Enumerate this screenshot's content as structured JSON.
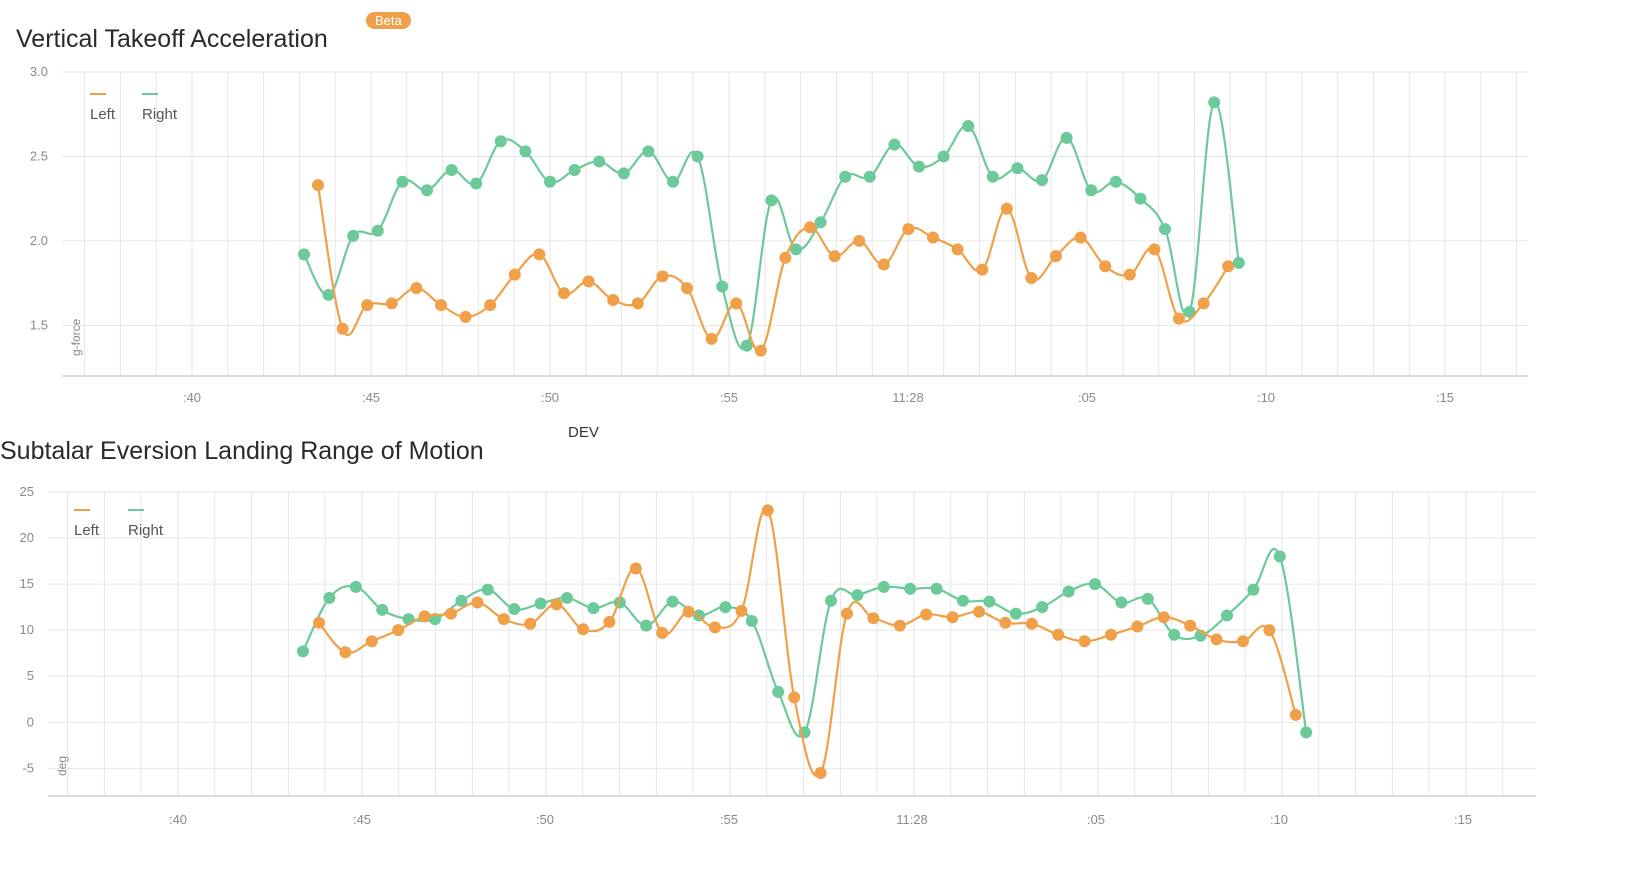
{
  "badge": "Beta",
  "dev_label": "DEV",
  "colors": {
    "left": "#f0a048",
    "right": "#6cc99a"
  },
  "chart_data": [
    {
      "type": "line",
      "title": "Vertical Takeoff Acceleration",
      "ylabel": "g-force",
      "xlabel": "",
      "ylim": [
        1.2,
        3.0
      ],
      "yticks": [
        "1.5",
        "2.0",
        "2.5",
        "3.0"
      ],
      "xticks": [
        ":40",
        ":45",
        ":50",
        ":55",
        "11:28",
        ":05",
        ":10",
        ":15"
      ],
      "legend": {
        "position": "top-left",
        "entries": [
          "Left",
          "Right"
        ]
      },
      "x": [
        0,
        1,
        2,
        3,
        4,
        5,
        6,
        7,
        8,
        9,
        10,
        11,
        12,
        13,
        14,
        15,
        16,
        17,
        18,
        19,
        20,
        21,
        22,
        23,
        24,
        25,
        26,
        27,
        28,
        29,
        30,
        31,
        32,
        33,
        34,
        35,
        36,
        37,
        38,
        39
      ],
      "series": [
        {
          "name": "Left",
          "values": [
            2.33,
            1.48,
            1.62,
            1.63,
            1.72,
            1.62,
            1.55,
            1.62,
            1.8,
            1.92,
            1.69,
            1.76,
            1.65,
            1.63,
            1.79,
            1.72,
            1.42,
            1.63,
            1.35,
            1.9,
            2.08,
            1.91,
            2.0,
            1.86,
            2.07,
            2.02,
            1.95,
            1.83,
            2.19,
            1.78,
            1.91,
            2.02,
            1.85,
            1.8,
            1.95,
            1.54,
            1.63,
            1.85,
            null,
            null
          ]
        },
        {
          "name": "Right",
          "values": [
            1.92,
            1.68,
            2.03,
            2.06,
            2.35,
            2.3,
            2.42,
            2.34,
            2.59,
            2.53,
            2.35,
            2.42,
            2.47,
            2.4,
            2.53,
            2.35,
            2.5,
            1.73,
            1.38,
            2.24,
            1.95,
            2.11,
            2.38,
            2.38,
            2.57,
            2.44,
            2.5,
            2.68,
            2.38,
            2.43,
            2.36,
            2.61,
            2.3,
            2.35,
            2.25,
            2.07,
            1.58,
            2.82,
            1.87,
            null
          ]
        }
      ]
    },
    {
      "type": "line",
      "title": "Subtalar Eversion Landing Range of Motion",
      "ylabel": "deg",
      "xlabel": "",
      "ylim": [
        -8,
        25
      ],
      "yticks": [
        "-5",
        "0",
        "5",
        "10",
        "15",
        "20",
        "25"
      ],
      "xticks": [
        ":40",
        ":45",
        ":50",
        ":55",
        "11:28",
        ":05",
        ":10",
        ":15"
      ],
      "legend": {
        "position": "top-left",
        "entries": [
          "Left",
          "Right"
        ]
      },
      "x": [
        0,
        1,
        2,
        3,
        4,
        5,
        6,
        7,
        8,
        9,
        10,
        11,
        12,
        13,
        14,
        15,
        16,
        17,
        18,
        19,
        20,
        21,
        22,
        23,
        24,
        25,
        26,
        27,
        28,
        29,
        30,
        31,
        32,
        33,
        34,
        35,
        36,
        37,
        38,
        39
      ],
      "series": [
        {
          "name": "Left",
          "values": [
            10.8,
            7.6,
            8.8,
            10,
            11.5,
            11.8,
            13,
            11.2,
            10.7,
            12.8,
            10.1,
            10.9,
            16.7,
            9.7,
            12.0,
            10.3,
            12.1,
            23,
            2.7,
            -5.5,
            11.8,
            11.3,
            10.5,
            11.7,
            11.4,
            12.0,
            10.8,
            10.7,
            9.5,
            8.8,
            9.5,
            10.4,
            11.4,
            10.5,
            9.0,
            8.8,
            10.0,
            0.8,
            null,
            null
          ]
        },
        {
          "name": "Right",
          "values": [
            7.7,
            13.5,
            14.7,
            12.2,
            11.2,
            11.2,
            13.2,
            14.4,
            12.3,
            12.9,
            13.5,
            12.4,
            13.0,
            10.5,
            13.1,
            11.6,
            12.5,
            11.0,
            3.3,
            -1.1,
            13.2,
            13.8,
            14.7,
            14.5,
            14.5,
            13.2,
            13.1,
            11.8,
            12.5,
            14.2,
            15.0,
            13.0,
            13.4,
            9.5,
            9.4,
            11.6,
            14.4,
            18.0,
            -1.1,
            null
          ]
        }
      ]
    }
  ]
}
